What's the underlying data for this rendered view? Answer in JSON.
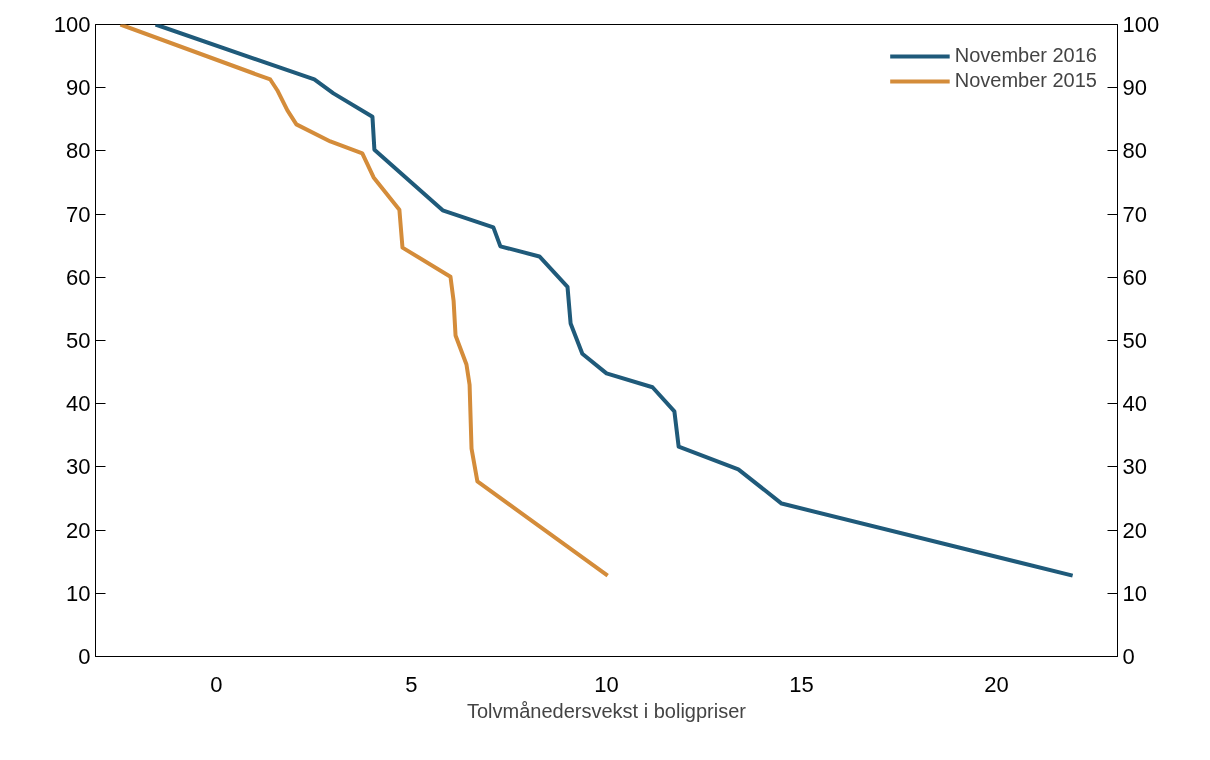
{
  "chart_data": {
    "type": "line",
    "xlabel": "Tolvmånedersvekst i boligpriser",
    "xlim": [
      -3.1,
      23.1
    ],
    "xticks": [
      0,
      5,
      10,
      15,
      20
    ],
    "ylim": [
      0,
      100
    ],
    "yticks": [
      0,
      10,
      20,
      30,
      40,
      50,
      60,
      70,
      80,
      90,
      100
    ],
    "y2lim": [
      0,
      100
    ],
    "y2ticks": [
      0,
      10,
      20,
      30,
      40,
      50,
      60,
      70,
      80,
      90,
      100
    ],
    "grid": false,
    "legend": "top right",
    "line_style": "solid",
    "marker": "none",
    "series": [
      {
        "name": "November 2016",
        "color": "#1f5a7a",
        "x": [
          -1.56,
          2.51,
          3.0,
          4.0,
          4.05,
          5.8,
          7.1,
          7.28,
          8.28,
          9.0,
          9.08,
          9.38,
          10.0,
          11.18,
          11.74,
          11.85,
          13.38,
          14.49,
          21.95
        ],
        "values": [
          100,
          91.3,
          89.1,
          85.4,
          80.2,
          70.6,
          67.9,
          64.9,
          63.3,
          58.5,
          52.7,
          47.9,
          44.8,
          42.6,
          38.8,
          33.2,
          29.6,
          24.2,
          12.8
        ]
      },
      {
        "name": "November 2015",
        "color": "#d48c3a",
        "x": [
          -2.46,
          1.38,
          1.56,
          1.82,
          2.05,
          2.92,
          3.74,
          4.03,
          4.69,
          4.77,
          6.0,
          6.08,
          6.13,
          6.41,
          6.49,
          6.54,
          6.69,
          10.03
        ],
        "values": [
          100,
          91.3,
          89.6,
          86.4,
          84.2,
          81.5,
          79.6,
          75.8,
          70.7,
          64.7,
          60.1,
          56.3,
          50.8,
          46.2,
          43.0,
          32.9,
          27.7,
          12.8
        ]
      }
    ]
  }
}
